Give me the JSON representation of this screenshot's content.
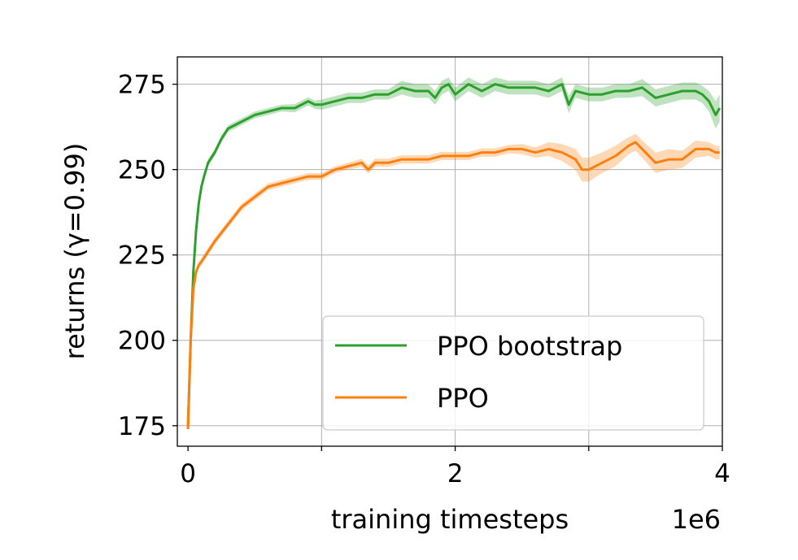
{
  "chart_data": {
    "type": "line",
    "xlabel": "training timesteps",
    "ylabel": "returns (γ=0.99)",
    "x_multiplier": "1e6",
    "xlim": [
      -0.08,
      4.0
    ],
    "ylim": [
      169,
      283
    ],
    "x_ticks": [
      0,
      2,
      4
    ],
    "x_tick_labels": [
      "0",
      "2",
      "4"
    ],
    "y_ticks": [
      175,
      200,
      225,
      250,
      275
    ],
    "y_tick_labels": [
      "175",
      "200",
      "225",
      "250",
      "275"
    ],
    "grid": true,
    "legend_position": "lower-right",
    "x_units": "1e6 timesteps",
    "series": [
      {
        "name": "PPO bootstrap",
        "color": "#2ca02c",
        "x": [
          0.0,
          0.02,
          0.04,
          0.06,
          0.08,
          0.1,
          0.12,
          0.15,
          0.2,
          0.25,
          0.3,
          0.35,
          0.4,
          0.5,
          0.6,
          0.7,
          0.8,
          0.9,
          0.95,
          1.0,
          1.1,
          1.2,
          1.3,
          1.4,
          1.5,
          1.6,
          1.7,
          1.8,
          1.85,
          1.9,
          1.95,
          2.0,
          2.1,
          2.2,
          2.3,
          2.4,
          2.5,
          2.6,
          2.7,
          2.75,
          2.8,
          2.85,
          2.9,
          3.0,
          3.1,
          3.2,
          3.3,
          3.4,
          3.5,
          3.6,
          3.7,
          3.8,
          3.85,
          3.9,
          3.95,
          3.98
        ],
        "values": [
          175,
          200,
          220,
          232,
          240,
          245,
          248,
          252,
          255,
          259,
          262,
          263,
          264,
          266,
          267,
          268,
          268,
          270,
          269,
          269,
          270,
          271,
          271,
          272,
          272,
          274,
          273,
          273,
          271,
          274,
          275,
          272,
          275,
          273,
          275,
          274,
          274,
          274,
          273,
          274,
          275,
          269,
          273,
          272,
          272,
          273,
          273,
          274,
          271,
          272,
          273,
          273,
          272,
          270,
          266,
          268
        ],
        "band_width": [
          1,
          1.5,
          1.5,
          1.5,
          1.2,
          1,
          1,
          1,
          1,
          1,
          1,
          1,
          1,
          1,
          1,
          1,
          1.2,
          1.2,
          1.2,
          1.5,
          1.5,
          1.5,
          1.5,
          1.5,
          1.5,
          2,
          2,
          2,
          2,
          2,
          2,
          2,
          2,
          2,
          2,
          2,
          2,
          2,
          2,
          2,
          2,
          2.5,
          2,
          2,
          2,
          2,
          2,
          2.5,
          2.5,
          2.5,
          2.5,
          2.5,
          2.5,
          3,
          4,
          4
        ]
      },
      {
        "name": "PPO",
        "color": "#ff7f0e",
        "x": [
          0.0,
          0.02,
          0.04,
          0.06,
          0.08,
          0.1,
          0.15,
          0.2,
          0.3,
          0.4,
          0.5,
          0.6,
          0.7,
          0.8,
          0.9,
          1.0,
          1.1,
          1.2,
          1.3,
          1.35,
          1.4,
          1.5,
          1.6,
          1.7,
          1.8,
          1.9,
          2.0,
          2.1,
          2.2,
          2.3,
          2.4,
          2.5,
          2.6,
          2.7,
          2.8,
          2.9,
          2.95,
          3.0,
          3.1,
          3.2,
          3.3,
          3.35,
          3.4,
          3.5,
          3.6,
          3.7,
          3.8,
          3.9,
          3.95,
          3.98
        ],
        "values": [
          174,
          200,
          215,
          220,
          222,
          223,
          226,
          229,
          234,
          239,
          242,
          245,
          246,
          247,
          248,
          248,
          250,
          251,
          252,
          250,
          252,
          252,
          253,
          253,
          253,
          254,
          254,
          254,
          255,
          255,
          256,
          256,
          255,
          256,
          255,
          253,
          250,
          250,
          252,
          254,
          257,
          258,
          256,
          252,
          253,
          253,
          256,
          256,
          255,
          255
        ],
        "band_width": [
          1,
          1.2,
          1,
          1,
          1,
          1,
          1,
          1,
          1,
          1,
          1,
          1,
          1,
          1,
          1,
          1,
          1,
          1,
          1.2,
          1.2,
          1.2,
          1.2,
          1.2,
          1.2,
          1.2,
          1.2,
          1.2,
          1.2,
          1.2,
          1.2,
          1.2,
          1.5,
          1.5,
          2,
          2.5,
          3,
          3.5,
          3.5,
          3,
          3,
          2.5,
          2.5,
          2.5,
          3,
          3,
          2.5,
          2.5,
          2,
          2,
          2
        ]
      }
    ]
  }
}
